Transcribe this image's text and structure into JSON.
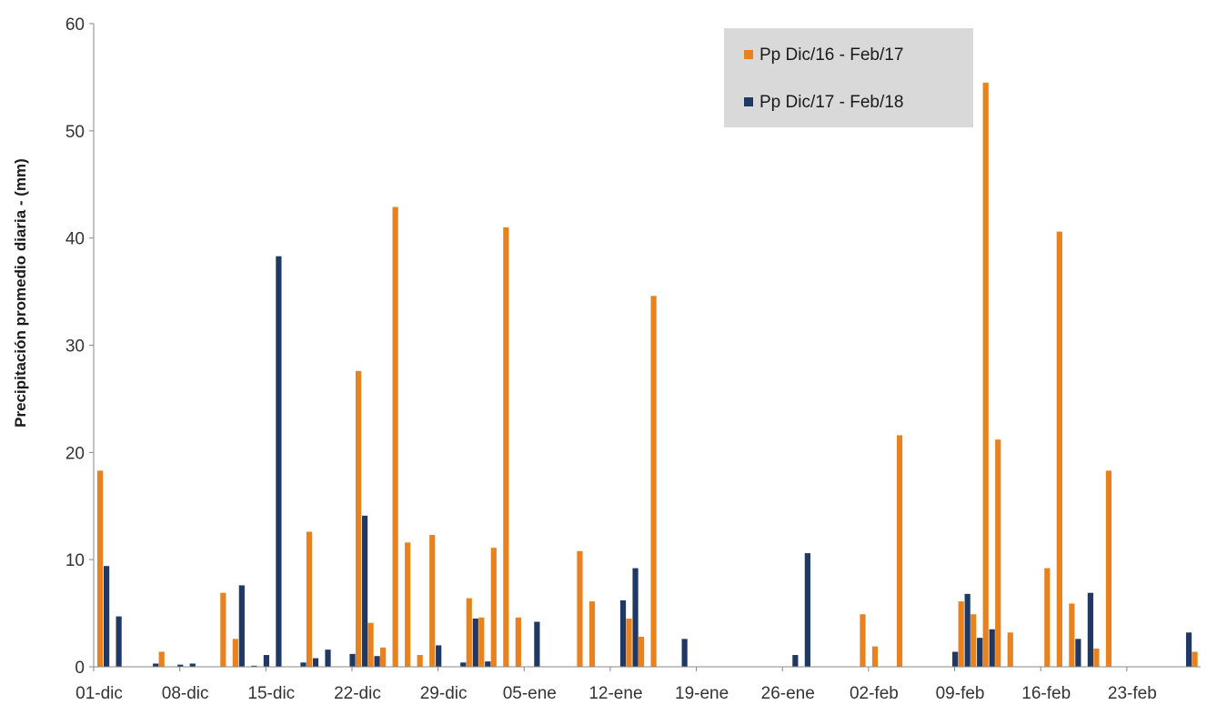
{
  "chart_data": {
    "type": "bar",
    "title": "",
    "xlabel": "",
    "ylabel": "Precipitación promedio diaria - (mm)",
    "ylim": [
      0,
      60
    ],
    "yticks": [
      0,
      10,
      20,
      30,
      40,
      50,
      60
    ],
    "grid": false,
    "legend_position": "top-right",
    "num_days": 90,
    "x_tick_labels": [
      {
        "day": 0,
        "label": "01-dic"
      },
      {
        "day": 7,
        "label": "08-dic"
      },
      {
        "day": 14,
        "label": "15-dic"
      },
      {
        "day": 21,
        "label": "22-dic"
      },
      {
        "day": 28,
        "label": "29-dic"
      },
      {
        "day": 35,
        "label": "05-ene"
      },
      {
        "day": 42,
        "label": "12-ene"
      },
      {
        "day": 49,
        "label": "19-ene"
      },
      {
        "day": 56,
        "label": "26-ene"
      },
      {
        "day": 63,
        "label": "02-feb"
      },
      {
        "day": 70,
        "label": "09-feb"
      },
      {
        "day": 77,
        "label": "16-feb"
      },
      {
        "day": 84,
        "label": "23-feb"
      }
    ],
    "series": [
      {
        "name": "Pp Dic/16 - Feb/17",
        "color": "#E8821E",
        "points": [
          {
            "day": 0,
            "value": 18.3
          },
          {
            "day": 5,
            "value": 1.4
          },
          {
            "day": 10,
            "value": 6.9
          },
          {
            "day": 11,
            "value": 2.6
          },
          {
            "day": 17,
            "value": 12.6
          },
          {
            "day": 21,
            "value": 27.6
          },
          {
            "day": 22,
            "value": 4.1
          },
          {
            "day": 23,
            "value": 1.8
          },
          {
            "day": 24,
            "value": 42.9
          },
          {
            "day": 25,
            "value": 11.6
          },
          {
            "day": 26,
            "value": 1.1
          },
          {
            "day": 27,
            "value": 12.3
          },
          {
            "day": 30,
            "value": 6.4
          },
          {
            "day": 31,
            "value": 4.6
          },
          {
            "day": 32,
            "value": 11.1
          },
          {
            "day": 33,
            "value": 41.0
          },
          {
            "day": 34,
            "value": 4.6
          },
          {
            "day": 39,
            "value": 10.8
          },
          {
            "day": 40,
            "value": 6.1
          },
          {
            "day": 43,
            "value": 4.5
          },
          {
            "day": 44,
            "value": 2.8
          },
          {
            "day": 45,
            "value": 34.6
          },
          {
            "day": 62,
            "value": 4.9
          },
          {
            "day": 63,
            "value": 1.9
          },
          {
            "day": 65,
            "value": 21.6
          },
          {
            "day": 70,
            "value": 6.1
          },
          {
            "day": 71,
            "value": 4.9
          },
          {
            "day": 72,
            "value": 54.5
          },
          {
            "day": 73,
            "value": 21.2
          },
          {
            "day": 74,
            "value": 3.2
          },
          {
            "day": 77,
            "value": 9.2
          },
          {
            "day": 78,
            "value": 40.6
          },
          {
            "day": 79,
            "value": 5.9
          },
          {
            "day": 81,
            "value": 1.7
          },
          {
            "day": 82,
            "value": 18.3
          },
          {
            "day": 89,
            "value": 1.4
          }
        ]
      },
      {
        "name": "Pp Dic/17 - Feb/18",
        "color": "#1F3864",
        "points": [
          {
            "day": 0,
            "value": 9.4
          },
          {
            "day": 1,
            "value": 4.7
          },
          {
            "day": 4,
            "value": 0.3
          },
          {
            "day": 6,
            "value": 0.2
          },
          {
            "day": 7,
            "value": 0.3
          },
          {
            "day": 11,
            "value": 7.6
          },
          {
            "day": 12,
            "value": 0.1
          },
          {
            "day": 13,
            "value": 1.1
          },
          {
            "day": 14,
            "value": 38.3
          },
          {
            "day": 16,
            "value": 0.4
          },
          {
            "day": 17,
            "value": 0.8
          },
          {
            "day": 18,
            "value": 1.6
          },
          {
            "day": 20,
            "value": 1.2
          },
          {
            "day": 21,
            "value": 14.1
          },
          {
            "day": 22,
            "value": 1.0
          },
          {
            "day": 27,
            "value": 2.0
          },
          {
            "day": 29,
            "value": 0.4
          },
          {
            "day": 30,
            "value": 4.5
          },
          {
            "day": 31,
            "value": 0.5
          },
          {
            "day": 35,
            "value": 4.2
          },
          {
            "day": 42,
            "value": 6.2
          },
          {
            "day": 43,
            "value": 9.2
          },
          {
            "day": 47,
            "value": 2.6
          },
          {
            "day": 56,
            "value": 1.1
          },
          {
            "day": 57,
            "value": 10.6
          },
          {
            "day": 69,
            "value": 1.4
          },
          {
            "day": 70,
            "value": 6.8
          },
          {
            "day": 71,
            "value": 2.7
          },
          {
            "day": 72,
            "value": 3.5
          },
          {
            "day": 79,
            "value": 2.6
          },
          {
            "day": 80,
            "value": 6.9
          },
          {
            "day": 88,
            "value": 3.2
          }
        ]
      }
    ]
  }
}
